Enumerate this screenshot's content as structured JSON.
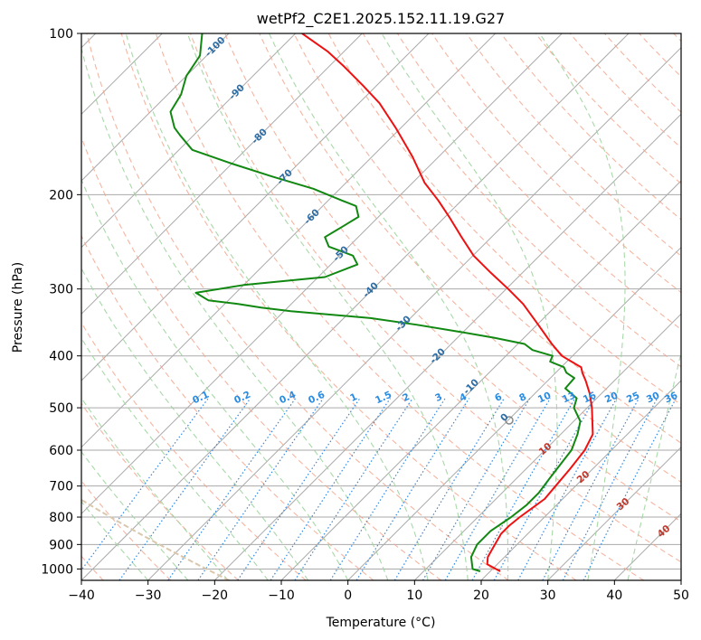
{
  "chart_data": {
    "type": "line",
    "title": "wetPf2_C2E1.2025.152.11.19.G27",
    "xlabel": "Temperature (°C)",
    "ylabel": "Pressure (hPa)",
    "xlim": [
      -40,
      50
    ],
    "ylim": [
      1050,
      100
    ],
    "y_scale": "log",
    "x_ticks": [
      -40,
      -30,
      -20,
      -10,
      0,
      10,
      20,
      30,
      40,
      50
    ],
    "y_ticks": [
      100,
      200,
      300,
      400,
      500,
      600,
      700,
      800,
      900,
      1000
    ],
    "grid": true,
    "skew_degrees": 45,
    "colors": {
      "temperature": "#ee1111",
      "dewpoint": "#118811",
      "isotherm": "#aaaaaa",
      "dry_adiabat": "#f2a38a",
      "moist_adiabat": "#9fd49f",
      "mixing_ratio": "#3388dd",
      "dry_adiabat_label": "#c0392b",
      "isotherm_label": "#2e6da4",
      "mixing_label": "#2a8ce0",
      "lcl_circle": "#888888",
      "parcel_curve": "#d9c8ae"
    },
    "series": [
      {
        "name": "",
        "role": "temperature",
        "p": [
          1010,
          1000,
          980,
          950,
          920,
          890,
          860,
          830,
          800,
          770,
          740,
          700,
          650,
          600,
          560,
          530,
          500,
          470,
          445,
          430,
          420,
          410,
          400,
          380,
          350,
          320,
          300,
          280,
          260,
          240,
          220,
          205,
          190,
          170,
          150,
          135,
          125,
          115,
          108,
          100
        ],
        "t": [
          21.5,
          20.5,
          18.5,
          17.5,
          17.0,
          16.5,
          16.0,
          16.0,
          16.3,
          16.8,
          17.3,
          17.0,
          16.6,
          16.0,
          14.8,
          12.8,
          10.7,
          8.2,
          5.7,
          4.0,
          3.0,
          0.7,
          -1.6,
          -4.9,
          -9.8,
          -15.2,
          -19.7,
          -24.7,
          -29.9,
          -34.5,
          -39.4,
          -43.5,
          -48.2,
          -53.9,
          -60.8,
          -66.9,
          -72.1,
          -77.9,
          -82.5,
          -89.0
        ]
      },
      {
        "name": "",
        "role": "dewpoint",
        "p": [
          1010,
          1000,
          950,
          900,
          850,
          800,
          760,
          720,
          680,
          640,
          600,
          560,
          530,
          500,
          480,
          460,
          440,
          430,
          420,
          410,
          400,
          390,
          380,
          370,
          360,
          350,
          340,
          330,
          325,
          320,
          315,
          305,
          295,
          285,
          270,
          260,
          250,
          240,
          230,
          220,
          210,
          205,
          195,
          185,
          175,
          165,
          155,
          150,
          140,
          130,
          120,
          110,
          100
        ],
        "td": [
          18.5,
          17.0,
          15.0,
          14.0,
          14.0,
          15.0,
          15.5,
          15.5,
          15.0,
          14.5,
          14.0,
          12.5,
          11.0,
          8.0,
          7.0,
          3.8,
          3.6,
          1.6,
          0.4,
          -2.5,
          -3.0,
          -6.9,
          -9.0,
          -14.5,
          -21.0,
          -28.0,
          -36.0,
          -49.0,
          -54.0,
          -58.0,
          -63.0,
          -66.0,
          -60.0,
          -49.0,
          -46.0,
          -48.0,
          -53.0,
          -55.0,
          -54.0,
          -53.0,
          -55.0,
          -58.0,
          -64.0,
          -72.0,
          -80.0,
          -88.0,
          -92.0,
          -94.0,
          -97.0,
          -98.0,
          -100.0,
          -101.0,
          -104.0
        ]
      }
    ],
    "isotherm_labels": [
      "-100",
      "-90",
      "-80",
      "-70",
      "-60",
      "-50",
      "-40",
      "-30",
      "-20",
      "-10",
      "0"
    ],
    "dry_adiabat_labels": [
      "10",
      "20",
      "30",
      "40"
    ],
    "mixing_ratio_labels": [
      "0.1",
      "0.2",
      "0.4",
      "0.6",
      "1",
      "1.5",
      "2",
      "3",
      "4",
      "6",
      "8",
      "10",
      "13",
      "16",
      "20",
      "25",
      "30",
      "36"
    ]
  }
}
